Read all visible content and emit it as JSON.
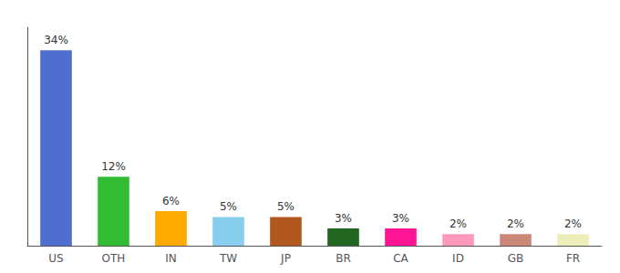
{
  "chart_data": {
    "type": "bar",
    "categories": [
      "US",
      "OTH",
      "IN",
      "TW",
      "JP",
      "BR",
      "CA",
      "ID",
      "GB",
      "FR"
    ],
    "values": [
      34,
      12,
      6,
      5,
      5,
      3,
      3,
      2,
      2,
      2
    ],
    "value_labels": [
      "34%",
      "12%",
      "6%",
      "5%",
      "5%",
      "3%",
      "3%",
      "2%",
      "2%",
      "2%"
    ],
    "colors": [
      "#4f6fd0",
      "#33bb33",
      "#ffaa00",
      "#88ccee",
      "#b05820",
      "#226622",
      "#ff1493",
      "#ff99bb",
      "#cc8877",
      "#eeeebb"
    ],
    "ylim": [
      0,
      38
    ],
    "grid": false,
    "data_labels": true,
    "tick_labels": "x"
  }
}
